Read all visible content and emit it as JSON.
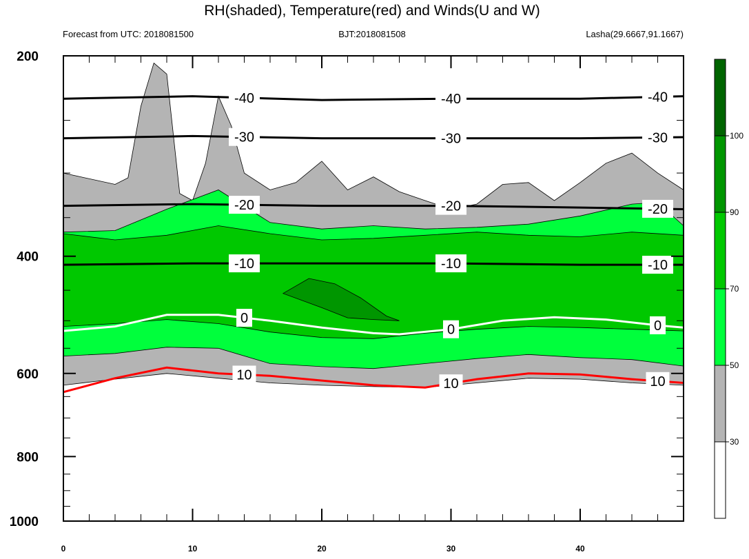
{
  "chart_data": {
    "type": "heatmap",
    "title": "RH(shaded), Temperature(red) and Winds(U and W)",
    "subtitle_left": "Forecast from UTC: 2018081500",
    "subtitle_center": "BJT:2018081508",
    "subtitle_right": "Lasha(29.6667,91.1667)",
    "x_range": [
      0,
      48
    ],
    "x_ticks": [
      0,
      10,
      20,
      30,
      40
    ],
    "y_range": [
      200,
      1000
    ],
    "y_ticks": [
      200,
      400,
      600,
      800,
      1000
    ],
    "y_scale": "log",
    "colorbar": {
      "levels": [
        30,
        50,
        70,
        90,
        100
      ],
      "tick_labels": [
        "30",
        "50",
        "70",
        "90",
        "100"
      ],
      "colors": [
        "#ffffff",
        "#b4b4b4",
        "#00ff3c",
        "#00c800",
        "#009600",
        "#006400"
      ]
    },
    "rh_bands": [
      {
        "level": "30-50",
        "color": "#b4b4b4",
        "top": [
          [
            0,
            300
          ],
          [
            4,
            312
          ],
          [
            5,
            305
          ],
          [
            6,
            238
          ],
          [
            7,
            205
          ],
          [
            8,
            213
          ],
          [
            9,
            322
          ],
          [
            10,
            330
          ],
          [
            11,
            290
          ],
          [
            12,
            230
          ],
          [
            13,
            255
          ],
          [
            14,
            300
          ],
          [
            16,
            318
          ],
          [
            18,
            310
          ],
          [
            20,
            288
          ],
          [
            22,
            318
          ],
          [
            24,
            304
          ],
          [
            26,
            320
          ],
          [
            28,
            330
          ],
          [
            30,
            340
          ],
          [
            32,
            334
          ],
          [
            34,
            312
          ],
          [
            36,
            310
          ],
          [
            38,
            330
          ],
          [
            40,
            310
          ],
          [
            42,
            290
          ],
          [
            44,
            280
          ],
          [
            46,
            300
          ],
          [
            48,
            318
          ]
        ],
        "bottom": [
          [
            0,
            625
          ],
          [
            3,
            615
          ],
          [
            8,
            600
          ],
          [
            12,
            610
          ],
          [
            16,
            620
          ],
          [
            20,
            625
          ],
          [
            24,
            628
          ],
          [
            28,
            630
          ],
          [
            32,
            620
          ],
          [
            36,
            610
          ],
          [
            40,
            612
          ],
          [
            44,
            620
          ],
          [
            48,
            625
          ]
        ]
      },
      {
        "level": "50-70",
        "color": "#00ff3c",
        "top": [
          [
            0,
            368
          ],
          [
            4,
            366
          ],
          [
            8,
            340
          ],
          [
            12,
            318
          ],
          [
            16,
            356
          ],
          [
            20,
            364
          ],
          [
            24,
            360
          ],
          [
            28,
            364
          ],
          [
            32,
            362
          ],
          [
            36,
            358
          ],
          [
            40,
            348
          ],
          [
            44,
            334
          ],
          [
            46,
            332
          ],
          [
            48,
            360
          ]
        ],
        "bottom": [
          [
            0,
            565
          ],
          [
            4,
            560
          ],
          [
            8,
            548
          ],
          [
            12,
            550
          ],
          [
            16,
            580
          ],
          [
            20,
            586
          ],
          [
            24,
            590
          ],
          [
            28,
            580
          ],
          [
            32,
            570
          ],
          [
            36,
            562
          ],
          [
            40,
            568
          ],
          [
            44,
            572
          ],
          [
            48,
            585
          ]
        ]
      },
      {
        "level": "70-90",
        "color": "#00c800",
        "top": [
          [
            0,
            370
          ],
          [
            4,
            378
          ],
          [
            8,
            372
          ],
          [
            12,
            360
          ],
          [
            16,
            370
          ],
          [
            20,
            378
          ],
          [
            24,
            376
          ],
          [
            28,
            372
          ],
          [
            32,
            368
          ],
          [
            36,
            372
          ],
          [
            40,
            374
          ],
          [
            44,
            368
          ],
          [
            48,
            372
          ]
        ],
        "bottom": [
          [
            0,
            510
          ],
          [
            4,
            505
          ],
          [
            8,
            498
          ],
          [
            12,
            505
          ],
          [
            16,
            520
          ],
          [
            20,
            530
          ],
          [
            24,
            532
          ],
          [
            28,
            522
          ],
          [
            32,
            515
          ],
          [
            36,
            510
          ],
          [
            40,
            512
          ],
          [
            44,
            515
          ],
          [
            48,
            518
          ]
        ]
      },
      {
        "level": "90-100",
        "color": "#009600",
        "top": [
          [
            17,
            455
          ],
          [
            19,
            432
          ],
          [
            21,
            440
          ],
          [
            23,
            462
          ],
          [
            25,
            492
          ],
          [
            26,
            500
          ]
        ],
        "bottom": [
          [
            17,
            455
          ],
          [
            20,
            478
          ],
          [
            22,
            495
          ],
          [
            24,
            498
          ],
          [
            26,
            500
          ]
        ]
      }
    ],
    "temperature_contours": [
      {
        "label": "-40",
        "color": "#000000",
        "points": [
          [
            0,
            232
          ],
          [
            10,
            230
          ],
          [
            20,
            233
          ],
          [
            30,
            232
          ],
          [
            40,
            232
          ],
          [
            48,
            230
          ]
        ]
      },
      {
        "label": "-30",
        "color": "#000000",
        "points": [
          [
            0,
            266
          ],
          [
            10,
            264
          ],
          [
            20,
            266
          ],
          [
            30,
            266
          ],
          [
            40,
            266
          ],
          [
            48,
            265
          ]
        ]
      },
      {
        "label": "-20",
        "color": "#000000",
        "points": [
          [
            0,
            336
          ],
          [
            10,
            334
          ],
          [
            20,
            336
          ],
          [
            30,
            336
          ],
          [
            40,
            338
          ],
          [
            48,
            340
          ]
        ]
      },
      {
        "label": "-10",
        "color": "#000000",
        "points": [
          [
            0,
            412
          ],
          [
            10,
            410
          ],
          [
            20,
            410
          ],
          [
            30,
            410
          ],
          [
            40,
            412
          ],
          [
            48,
            412
          ]
        ]
      },
      {
        "label": "0",
        "color": "#ffffff",
        "points": [
          [
            0,
            518
          ],
          [
            4,
            510
          ],
          [
            8,
            490
          ],
          [
            12,
            490
          ],
          [
            16,
            500
          ],
          [
            20,
            512
          ],
          [
            24,
            522
          ],
          [
            26,
            524
          ],
          [
            30,
            515
          ],
          [
            34,
            500
          ],
          [
            38,
            494
          ],
          [
            42,
            498
          ],
          [
            46,
            508
          ],
          [
            48,
            512
          ]
        ]
      },
      {
        "label": "10",
        "color": "#ff0000",
        "points": [
          [
            0,
            640
          ],
          [
            4,
            610
          ],
          [
            8,
            588
          ],
          [
            12,
            600
          ],
          [
            16,
            605
          ],
          [
            20,
            615
          ],
          [
            24,
            625
          ],
          [
            28,
            630
          ],
          [
            32,
            612
          ],
          [
            36,
            600
          ],
          [
            40,
            602
          ],
          [
            44,
            612
          ],
          [
            48,
            620
          ]
        ]
      }
    ]
  }
}
